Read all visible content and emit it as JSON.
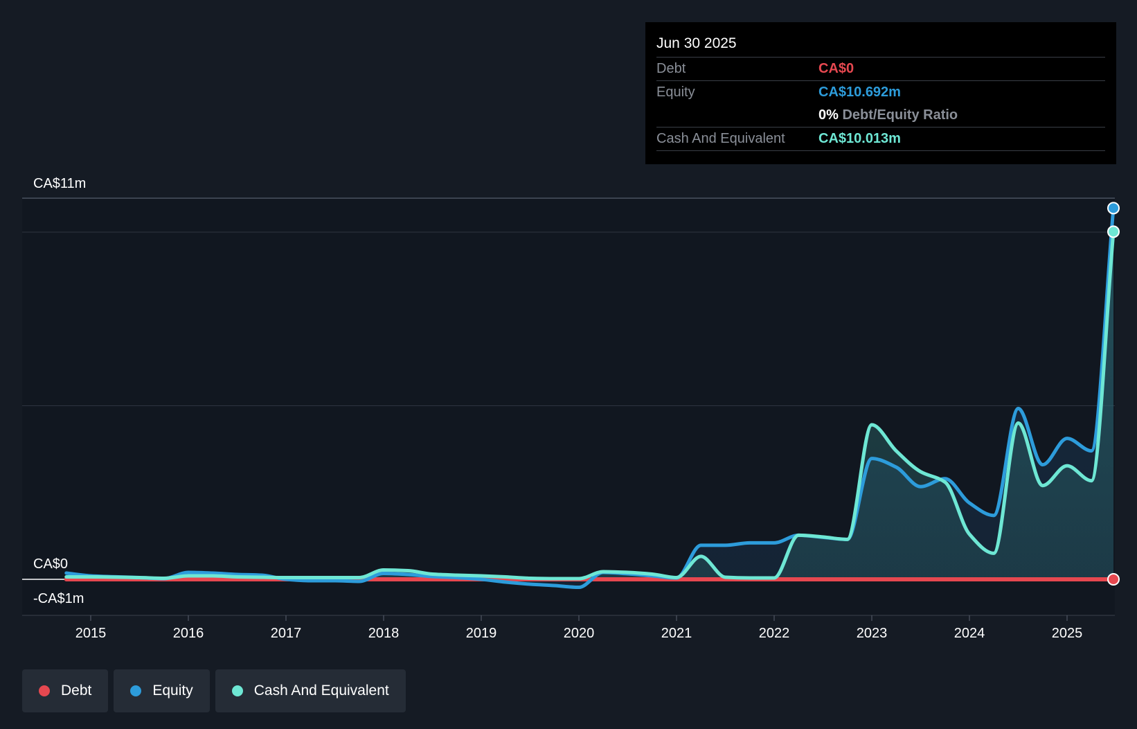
{
  "tooltip": {
    "date": "Jun 30 2025",
    "debt_label": "Debt",
    "debt_value": "CA$0",
    "equity_label": "Equity",
    "equity_value": "CA$10.692m",
    "ratio_value": "0%",
    "ratio_label": "Debt/Equity Ratio",
    "cash_label": "Cash And Equivalent",
    "cash_value": "CA$10.013m"
  },
  "legend": [
    {
      "label": "Debt",
      "color": "#e64850"
    },
    {
      "label": "Equity",
      "color": "#2d9cdb"
    },
    {
      "label": "Cash And Equivalent",
      "color": "#6ee7d4"
    }
  ],
  "chart_data": {
    "type": "area",
    "title": "",
    "xlabel": "",
    "ylabel": "",
    "y_tick_labels": [
      "CA$11m",
      "CA$0",
      "-CA$1m"
    ],
    "y_ticks": [
      11,
      0,
      -1
    ],
    "ylim": [
      -1,
      11
    ],
    "xlim": [
      2014.3,
      2025.5
    ],
    "x_ticks": [
      2015,
      2016,
      2017,
      2018,
      2019,
      2020,
      2021,
      2022,
      2023,
      2024,
      2025
    ],
    "x_tick_labels": [
      "2015",
      "2016",
      "2017",
      "2018",
      "2019",
      "2020",
      "2021",
      "2022",
      "2023",
      "2024",
      "2025"
    ],
    "series": [
      {
        "name": "Debt",
        "color": "#e64850",
        "x": [
          2014.75,
          2025.5
        ],
        "values": [
          0,
          0
        ]
      },
      {
        "name": "Equity",
        "color": "#2d9cdb",
        "x": [
          2014.75,
          2015.0,
          2015.5,
          2015.75,
          2016.0,
          2016.25,
          2016.5,
          2016.75,
          2017.0,
          2017.25,
          2017.5,
          2017.75,
          2018.0,
          2018.25,
          2018.5,
          2018.75,
          2019.0,
          2019.25,
          2019.5,
          2019.75,
          2020.0,
          2020.25,
          2020.5,
          2020.75,
          2021.0,
          2021.25,
          2021.5,
          2021.75,
          2022.0,
          2022.25,
          2022.5,
          2022.75,
          2023.0,
          2023.25,
          2023.5,
          2023.75,
          2024.0,
          2024.25,
          2024.5,
          2024.75,
          2025.0,
          2025.25,
          2025.5
        ],
        "values": [
          0.18,
          0.1,
          0.05,
          0.02,
          0.2,
          0.18,
          0.14,
          0.12,
          0.0,
          -0.04,
          -0.04,
          -0.06,
          0.17,
          0.14,
          0.08,
          0.05,
          0.0,
          -0.08,
          -0.14,
          -0.18,
          -0.23,
          0.2,
          0.16,
          0.1,
          0.04,
          0.98,
          0.98,
          1.05,
          1.05,
          1.27,
          1.21,
          1.15,
          3.48,
          3.23,
          2.67,
          2.9,
          2.2,
          1.84,
          4.92,
          3.3,
          4.06,
          3.7,
          10.692
        ]
      },
      {
        "name": "Cash And Equivalent",
        "color": "#6ee7d4",
        "x": [
          2014.75,
          2015.0,
          2015.5,
          2015.75,
          2016.0,
          2016.25,
          2016.5,
          2016.75,
          2017.0,
          2017.25,
          2017.5,
          2017.75,
          2018.0,
          2018.25,
          2018.5,
          2018.75,
          2019.0,
          2019.25,
          2019.5,
          2019.75,
          2020.0,
          2020.25,
          2020.5,
          2020.75,
          2021.0,
          2021.25,
          2021.5,
          2021.75,
          2022.0,
          2022.25,
          2022.5,
          2022.75,
          2023.0,
          2023.25,
          2023.5,
          2023.75,
          2024.0,
          2024.25,
          2024.5,
          2024.75,
          2025.0,
          2025.25,
          2025.5
        ],
        "values": [
          0.07,
          0.07,
          0.05,
          0.03,
          0.1,
          0.1,
          0.07,
          0.06,
          0.05,
          0.05,
          0.05,
          0.05,
          0.27,
          0.25,
          0.15,
          0.12,
          0.1,
          0.07,
          0.03,
          0.02,
          0.02,
          0.22,
          0.2,
          0.15,
          0.05,
          0.66,
          0.06,
          0.04,
          0.04,
          1.27,
          1.22,
          1.15,
          4.45,
          3.7,
          3.1,
          2.8,
          1.3,
          0.75,
          4.5,
          2.7,
          3.27,
          2.84,
          10.013
        ]
      }
    ]
  }
}
